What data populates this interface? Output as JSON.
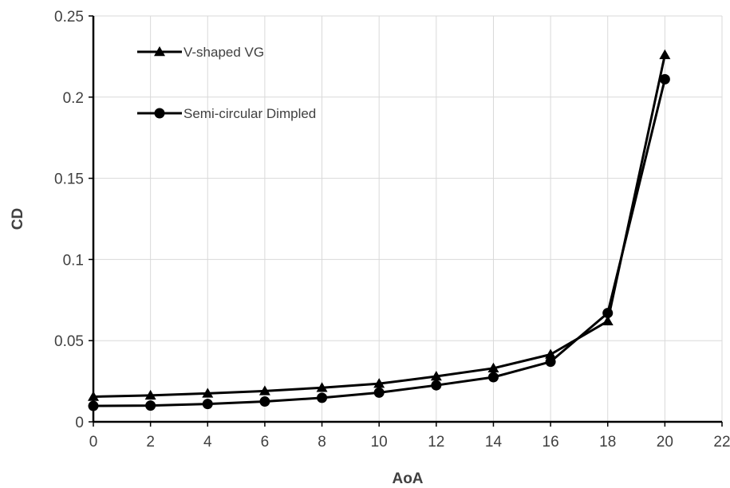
{
  "chart_data": {
    "type": "line",
    "title": "",
    "xlabel": "AoA",
    "ylabel": "CD",
    "xlim": [
      0,
      22
    ],
    "ylim": [
      0,
      0.25
    ],
    "xticks": [
      "0",
      "2",
      "4",
      "6",
      "8",
      "10",
      "12",
      "14",
      "16",
      "18",
      "20",
      "22"
    ],
    "yticks": [
      "0",
      "0.05",
      "0.1",
      "0.15",
      "0.2",
      "0.25"
    ],
    "grid": true,
    "legend_position": "top-left",
    "x": [
      0,
      2,
      4,
      6,
      8,
      10,
      12,
      14,
      16,
      18,
      20
    ],
    "series": [
      {
        "name": "V-shaped VG",
        "marker": "triangle",
        "color": "#000000",
        "values": [
          0.0155,
          0.0163,
          0.0175,
          0.019,
          0.021,
          0.0235,
          0.028,
          0.033,
          0.0415,
          0.062,
          0.226
        ]
      },
      {
        "name": "Semi-circular  Dimpled",
        "marker": "circle",
        "color": "#000000",
        "values": [
          0.0098,
          0.01,
          0.011,
          0.0125,
          0.0148,
          0.018,
          0.0225,
          0.0275,
          0.037,
          0.067,
          0.211
        ]
      }
    ]
  }
}
